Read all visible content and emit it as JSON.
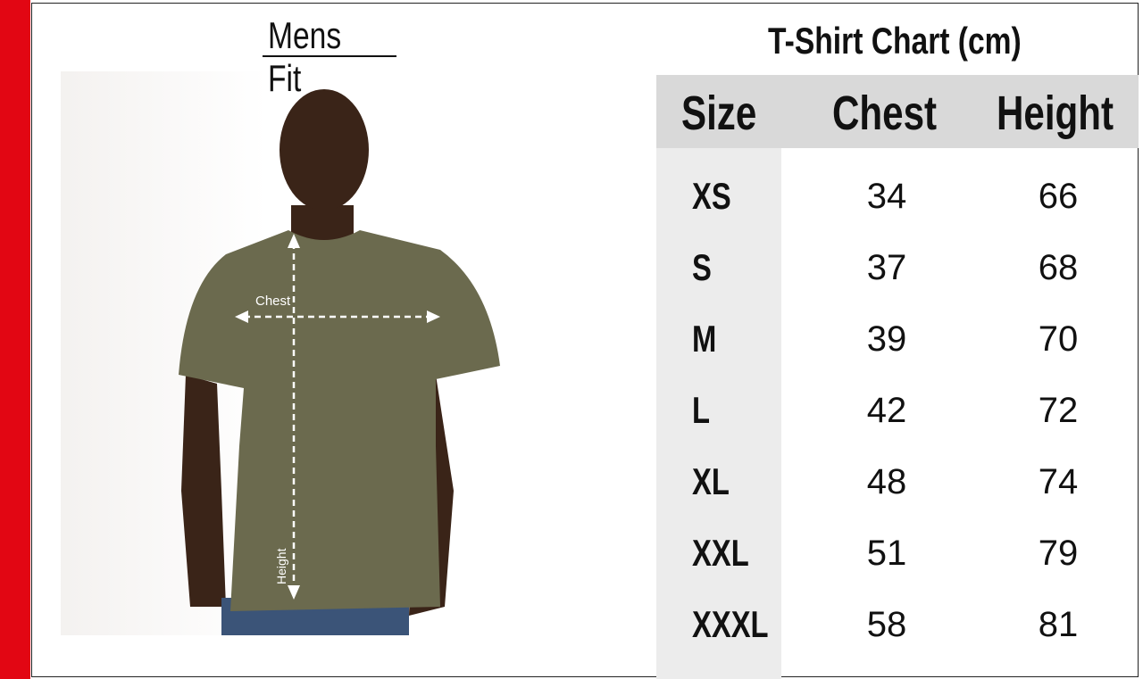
{
  "left_title": "Mens Fit",
  "right_title": "T-Shirt Chart (cm)",
  "photo": {
    "chest_label": "Chest",
    "height_label": "Height",
    "shirt_color": "#6b6a4e"
  },
  "colors": {
    "accent_bar": "#e20613",
    "header_bg": "#d9d9d9",
    "size_col_bg": "#ececec"
  },
  "table": {
    "headers": [
      "Size",
      "Chest",
      "Height"
    ],
    "rows": [
      {
        "size": "XS",
        "chest": "34",
        "height": "66"
      },
      {
        "size": "S",
        "chest": "37",
        "height": "68"
      },
      {
        "size": "M",
        "chest": "39",
        "height": "70"
      },
      {
        "size": "L",
        "chest": "42",
        "height": "72"
      },
      {
        "size": "XL",
        "chest": "48",
        "height": "74"
      },
      {
        "size": "XXL",
        "chest": "51",
        "height": "79"
      },
      {
        "size": "XXXL",
        "chest": "58",
        "height": "81"
      }
    ]
  }
}
